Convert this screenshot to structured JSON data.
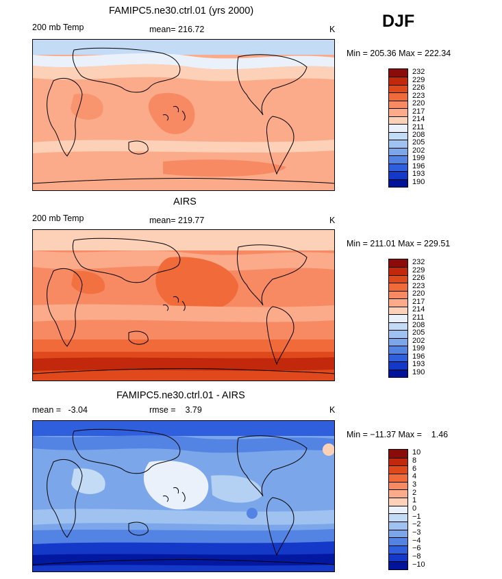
{
  "season": "DJF",
  "chart_data": [
    {
      "type": "heatmap",
      "title": "FAMIPC5.ne30.ctrl.01 (yrs 2000)",
      "left_label": "200 mb Temp",
      "center_label": "mean= 216.72",
      "right_label": "K",
      "minmax": "Min = 205.36 Max = 222.34",
      "mean": 216.72,
      "min": 205.36,
      "max": 222.34,
      "colorbar_labels": [
        "232",
        "229",
        "226",
        "223",
        "220",
        "217",
        "214",
        "211",
        "208",
        "205",
        "202",
        "199",
        "196",
        "193",
        "190"
      ],
      "colors": [
        "#8b0a0a",
        "#c1280c",
        "#e0491c",
        "#f06a3a",
        "#f78a62",
        "#fbaa8a",
        "#fdd0b8",
        "#eaf1fb",
        "#c3dbf5",
        "#9fc2f0",
        "#7ba6ea",
        "#5384e4",
        "#2f5fdc",
        "#1438c8",
        "#00139a"
      ]
    },
    {
      "type": "heatmap",
      "title": "AIRS",
      "left_label": "200 mb Temp",
      "center_label": "mean= 219.77",
      "right_label": "K",
      "minmax": "Min = 211.01 Max = 229.51",
      "mean": 219.77,
      "min": 211.01,
      "max": 229.51,
      "colorbar_labels": [
        "232",
        "229",
        "226",
        "223",
        "220",
        "217",
        "214",
        "211",
        "208",
        "205",
        "202",
        "199",
        "196",
        "193",
        "190"
      ],
      "colors": [
        "#8b0a0a",
        "#c1280c",
        "#e0491c",
        "#f06a3a",
        "#f78a62",
        "#fbaa8a",
        "#fdd0b8",
        "#eaf1fb",
        "#c3dbf5",
        "#9fc2f0",
        "#7ba6ea",
        "#5384e4",
        "#2f5fdc",
        "#1438c8",
        "#00139a"
      ]
    },
    {
      "type": "heatmap",
      "title": "FAMIPC5.ne30.ctrl.01 - AIRS",
      "left_label": "mean =   -3.04",
      "center_label": "rmse =    3.79",
      "right_label": "K",
      "minmax": "Min = −11.37 Max =    1.46",
      "mean": -3.04,
      "rmse": 3.79,
      "min": -11.37,
      "max": 1.46,
      "colorbar_labels": [
        "10",
        "8",
        "6",
        "4",
        "3",
        "2",
        "1",
        "0",
        "−1",
        "−2",
        "−3",
        "−4",
        "−6",
        "−8",
        "−10"
      ],
      "colors": [
        "#8b0a0a",
        "#c1280c",
        "#e0491c",
        "#f06a3a",
        "#f78a62",
        "#fbaa8a",
        "#fdd0b8",
        "#eaf1fb",
        "#c3dbf5",
        "#9fc2f0",
        "#7ba6ea",
        "#5384e4",
        "#2f5fdc",
        "#1438c8",
        "#00139a"
      ]
    }
  ]
}
